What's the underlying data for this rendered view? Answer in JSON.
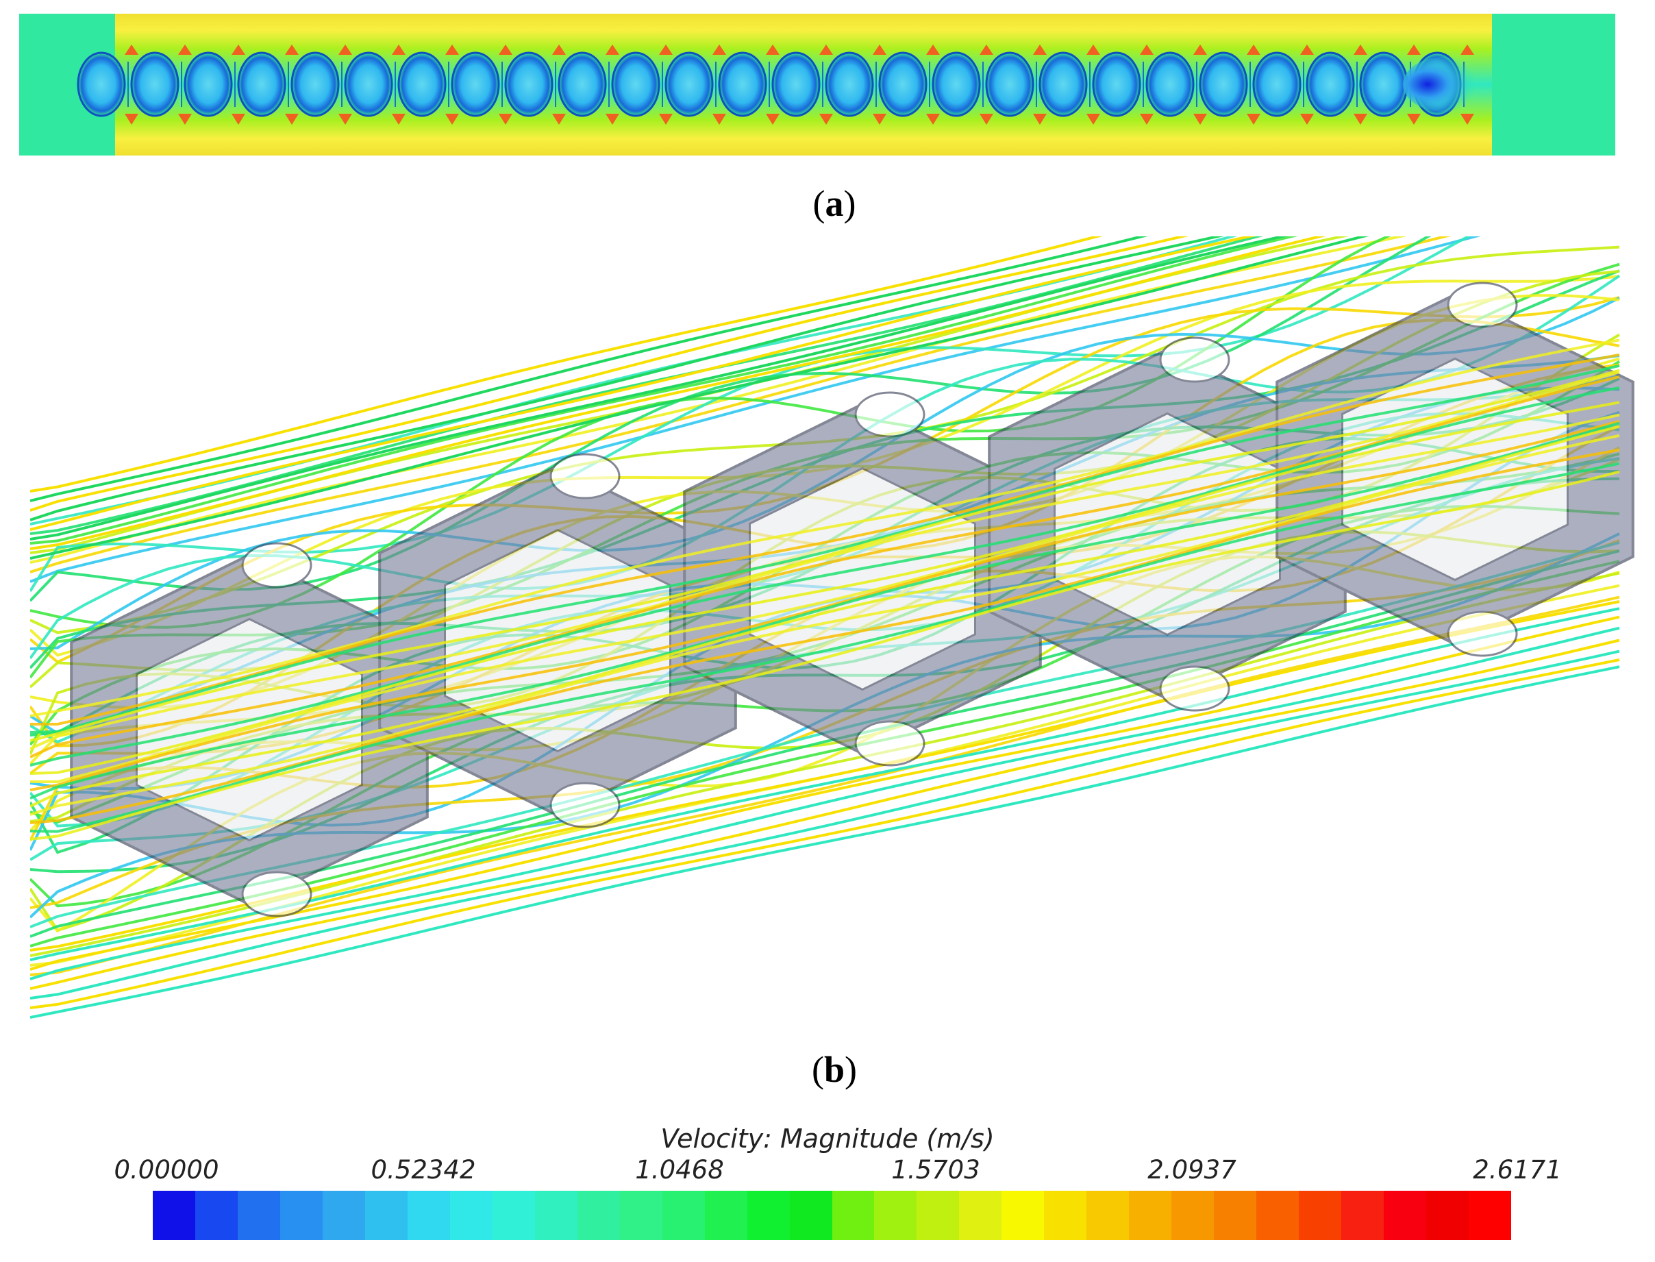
{
  "captions": {
    "a": "a",
    "b": "b"
  },
  "legend": {
    "title": "Velocity: Magnitude (m/s)",
    "ticks": [
      "0.00000",
      "0.52342",
      "1.0468",
      "1.5703",
      "2.0937",
      "2.6171"
    ],
    "range": [
      0,
      2.6171
    ],
    "colors": [
      "#1010e8",
      "#1848f0",
      "#2070f0",
      "#2890f0",
      "#30a8f0",
      "#30c0f0",
      "#30d8f0",
      "#30e8e8",
      "#30f0d8",
      "#30f0c0",
      "#30f0a0",
      "#30f088",
      "#28f070",
      "#20f050",
      "#10f030",
      "#10e820",
      "#70f010",
      "#a0f010",
      "#c0f010",
      "#e0f010",
      "#f8f800",
      "#f8e000",
      "#f8c800",
      "#f8b000",
      "#f89800",
      "#f88000",
      "#f86000",
      "#f84000",
      "#f82010",
      "#f80010",
      "#f00000",
      "#ff0000"
    ]
  },
  "icons": {
    "panel_a": "velocity-contour-section-icon",
    "panel_b": "streamline-lattice-icon"
  }
}
